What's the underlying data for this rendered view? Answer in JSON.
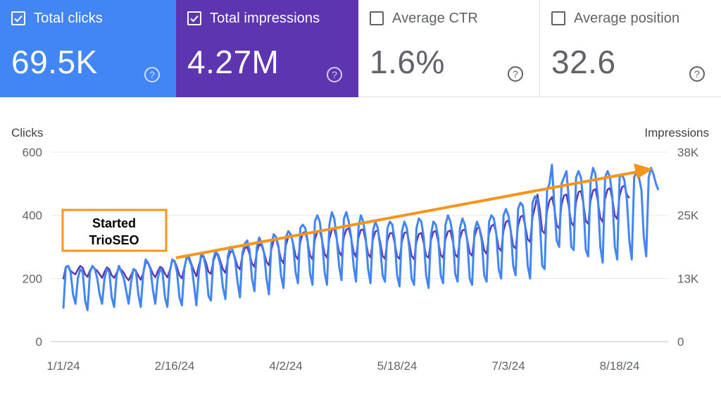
{
  "metrics": [
    {
      "label": "Total clicks",
      "value": "69.5K",
      "checked": true,
      "bg": "#4285f4",
      "fg": "#ffffff",
      "icon": "help-icon"
    },
    {
      "label": "Total impressions",
      "value": "4.27M",
      "checked": true,
      "bg": "#5e35b1",
      "fg": "#ffffff",
      "icon": "help-icon"
    },
    {
      "label": "Average CTR",
      "value": "1.6%",
      "checked": false,
      "bg": "#ffffff",
      "fg": "#5f6368",
      "icon": "help-icon"
    },
    {
      "label": "Average position",
      "value": "32.6",
      "checked": false,
      "bg": "#ffffff",
      "fg": "#5f6368",
      "icon": "help-icon"
    }
  ],
  "annotation": {
    "line1": "Started",
    "line2": "TrioSEO",
    "box_color": "#f7941d",
    "arrow_color": "#f7941d"
  },
  "chart_data": {
    "type": "line",
    "x_start": "1/1/24",
    "x_end": "8/31/24",
    "x_ticks": [
      "1/1/24",
      "2/16/24",
      "4/2/24",
      "5/18/24",
      "7/3/24",
      "8/18/24"
    ],
    "ylabel_left": "Clicks",
    "ylabel_right": "Impressions",
    "y_left_ticks": [
      "0",
      "200",
      "400",
      "600"
    ],
    "y_right_ticks": [
      "0",
      "13K",
      "25K",
      "38K"
    ],
    "ylim_left": [
      0,
      600
    ],
    "ylim_right": [
      0,
      38000
    ],
    "grid": true,
    "series": [
      {
        "name": "Clicks",
        "axis": "left",
        "color": "#4285f4",
        "values": [
          105,
          235,
          240,
          220,
          150,
          120,
          200,
          230,
          220,
          130,
          100,
          220,
          240,
          230,
          200,
          150,
          120,
          200,
          230,
          220,
          140,
          110,
          210,
          240,
          220,
          200,
          160,
          120,
          190,
          230,
          225,
          150,
          110,
          215,
          260,
          250,
          230,
          165,
          120,
          200,
          230,
          220,
          140,
          110,
          220,
          260,
          255,
          220,
          140,
          115,
          230,
          270,
          260,
          240,
          180,
          115,
          220,
          280,
          270,
          230,
          145,
          130,
          260,
          290,
          270,
          240,
          170,
          135,
          270,
          300,
          290,
          260,
          190,
          140,
          280,
          310,
          320,
          290,
          200,
          160,
          300,
          330,
          310,
          280,
          200,
          150,
          310,
          340,
          330,
          300,
          210,
          170,
          330,
          350,
          340,
          310,
          220,
          185,
          360,
          370,
          360,
          320,
          215,
          180,
          380,
          400,
          380,
          320,
          220,
          180,
          370,
          410,
          390,
          330,
          240,
          195,
          390,
          410,
          380,
          330,
          240,
          190,
          360,
          400,
          380,
          330,
          230,
          185,
          350,
          380,
          360,
          300,
          210,
          190,
          360,
          380,
          370,
          320,
          210,
          175,
          350,
          380,
          360,
          300,
          200,
          180,
          360,
          390,
          380,
          330,
          210,
          170,
          340,
          380,
          370,
          330,
          210,
          185,
          370,
          400,
          380,
          340,
          215,
          190,
          360,
          390,
          370,
          320,
          200,
          180,
          350,
          380,
          360,
          320,
          210,
          190,
          380,
          400,
          390,
          340,
          230,
          200,
          400,
          420,
          400,
          350,
          240,
          210,
          420,
          440,
          430,
          360,
          240,
          200,
          440,
          460,
          450,
          380,
          240,
          230,
          480,
          500,
          560,
          430,
          320,
          300,
          500,
          520,
          540,
          450,
          300,
          290,
          520,
          540,
          520,
          440,
          290,
          270,
          510,
          550,
          530,
          460,
          300,
          250,
          520,
          540,
          520,
          460,
          300,
          260,
          520,
          530,
          510,
          450,
          320,
          260,
          520,
          540,
          520,
          480,
          330,
          270,
          520,
          550,
          530,
          500,
          480
        ]
      },
      {
        "name": "Impressions",
        "axis": "right",
        "color": "#5e35b1",
        "values": [
          12500,
          15000,
          15200,
          14200,
          13800,
          13500,
          14500,
          15200,
          14800,
          13500,
          13000,
          14300,
          15000,
          14600,
          14200,
          13500,
          12800,
          14000,
          14900,
          14500,
          13300,
          12800,
          13800,
          14700,
          14400,
          13800,
          12900,
          12300,
          13300,
          14400,
          14200,
          13200,
          12400,
          13700,
          15800,
          15900,
          14800,
          13600,
          12900,
          14100,
          15000,
          14700,
          13600,
          12900,
          14300,
          16100,
          16200,
          14900,
          13300,
          12700,
          14800,
          16800,
          16900,
          15500,
          14200,
          13100,
          15300,
          17000,
          17100,
          15800,
          14000,
          13600,
          16100,
          17500,
          17500,
          16000,
          14500,
          13800,
          16500,
          18000,
          18100,
          16800,
          15100,
          14500,
          17200,
          18700,
          19000,
          17500,
          15700,
          15000,
          18000,
          19500,
          19200,
          17800,
          16000,
          15300,
          18500,
          20300,
          20500,
          18700,
          16500,
          15700,
          19300,
          21000,
          21500,
          19800,
          17200,
          16500,
          20000,
          21800,
          22000,
          20000,
          17300,
          16500,
          20500,
          22000,
          22300,
          20300,
          17600,
          16800,
          20600,
          22400,
          22600,
          20600,
          18000,
          17200,
          21000,
          22500,
          22700,
          20700,
          18000,
          17000,
          20800,
          22400,
          22500,
          20200,
          17600,
          16900,
          20500,
          22100,
          22300,
          20000,
          17200,
          16600,
          20300,
          21700,
          21800,
          19800,
          17100,
          16600,
          20100,
          21800,
          22000,
          19900,
          17200,
          16500,
          20000,
          21600,
          21800,
          19700,
          17300,
          16800,
          20400,
          22000,
          22200,
          20100,
          17400,
          16800,
          20600,
          22100,
          22300,
          20200,
          17500,
          16900,
          20700,
          22300,
          22500,
          20500,
          17800,
          17200,
          21100,
          22700,
          22900,
          20900,
          18300,
          17600,
          21700,
          23200,
          23500,
          21600,
          18800,
          18200,
          22300,
          24000,
          24300,
          22200,
          19200,
          18700,
          23200,
          25000,
          25300,
          23100,
          20500,
          20000,
          25000,
          27000,
          29500,
          26500,
          22200,
          21700,
          26200,
          28300,
          29000,
          26800,
          23300,
          22700,
          27500,
          29300,
          29500,
          27000,
          23900,
          23200,
          28000,
          30000,
          30200,
          27700,
          24200,
          23600,
          28300,
          30300,
          30600,
          28200,
          24800,
          24000,
          28700,
          30500,
          30800,
          28600,
          25300,
          24600,
          29200,
          31000,
          31300,
          29500,
          28800
        ]
      }
    ]
  }
}
